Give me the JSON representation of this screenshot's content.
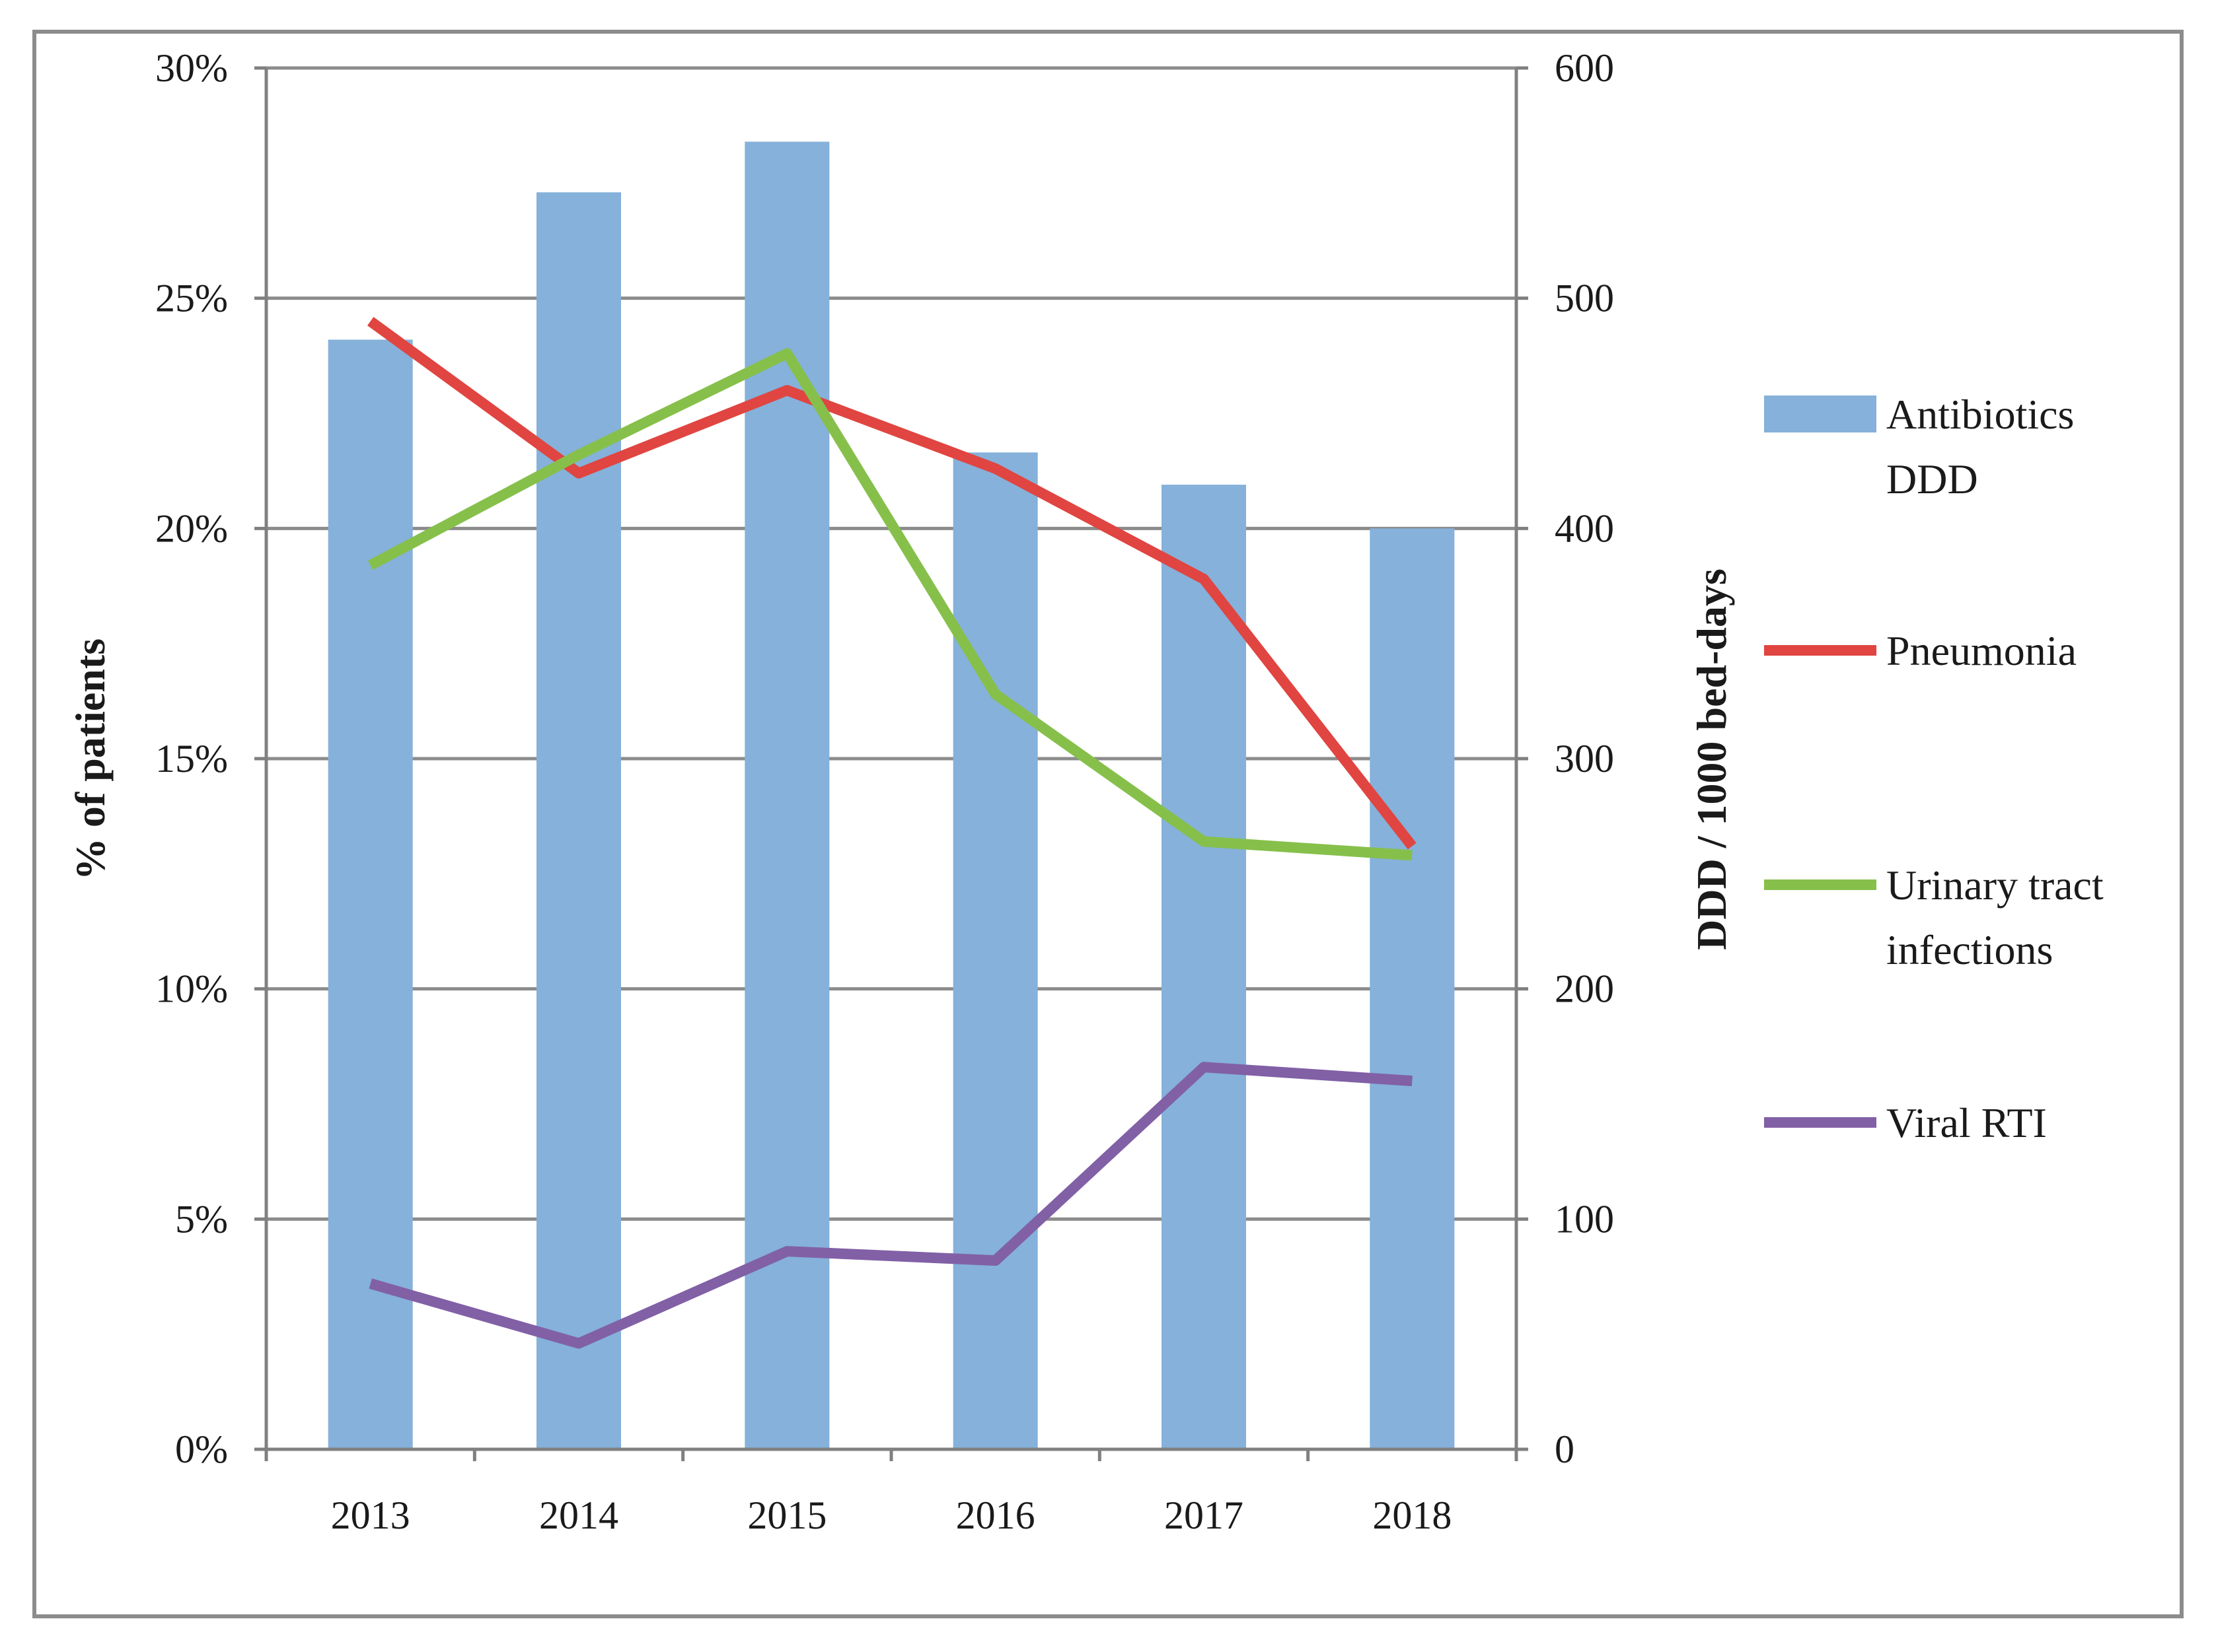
{
  "chart_data": {
    "type": "bar",
    "title": "",
    "xlabel": "",
    "ylabel": "% of patients",
    "y2label": "DDD / 1000 bed-days",
    "ylim": [
      0,
      30
    ],
    "y2lim": [
      0,
      600
    ],
    "yticks": [
      "0%",
      "5%",
      "10%",
      "15%",
      "20%",
      "25%",
      "30%"
    ],
    "y2ticks": [
      "0",
      "100",
      "200",
      "300",
      "400",
      "500",
      "600"
    ],
    "categories": [
      "2013",
      "2014",
      "2015",
      "2016",
      "2017",
      "2018"
    ],
    "bar_series": {
      "name": "Antibiotics DDD",
      "label_lines": [
        "Antibiotics",
        "DDD"
      ],
      "axis": "right",
      "color": "#85b1da",
      "values": [
        482,
        546,
        568,
        433,
        419,
        400
      ]
    },
    "series": [
      {
        "name": "Pneumonia",
        "label_lines": [
          "Pneumonia"
        ],
        "axis": "left",
        "color": "#e04541",
        "values": [
          24.5,
          21.2,
          23.0,
          21.3,
          18.9,
          13.1
        ]
      },
      {
        "name": "Urinary tract infections",
        "label_lines": [
          "Urinary tract",
          "infections"
        ],
        "axis": "left",
        "color": "#86c04b",
        "values": [
          19.2,
          21.6,
          23.8,
          16.4,
          13.2,
          12.9
        ]
      },
      {
        "name": "Viral RTI",
        "label_lines": [
          "Viral RTI"
        ],
        "axis": "left",
        "color": "#8160a6",
        "values": [
          3.6,
          2.3,
          4.3,
          4.1,
          8.3,
          8.0
        ]
      }
    ],
    "grid": true,
    "legend_position": "right"
  }
}
